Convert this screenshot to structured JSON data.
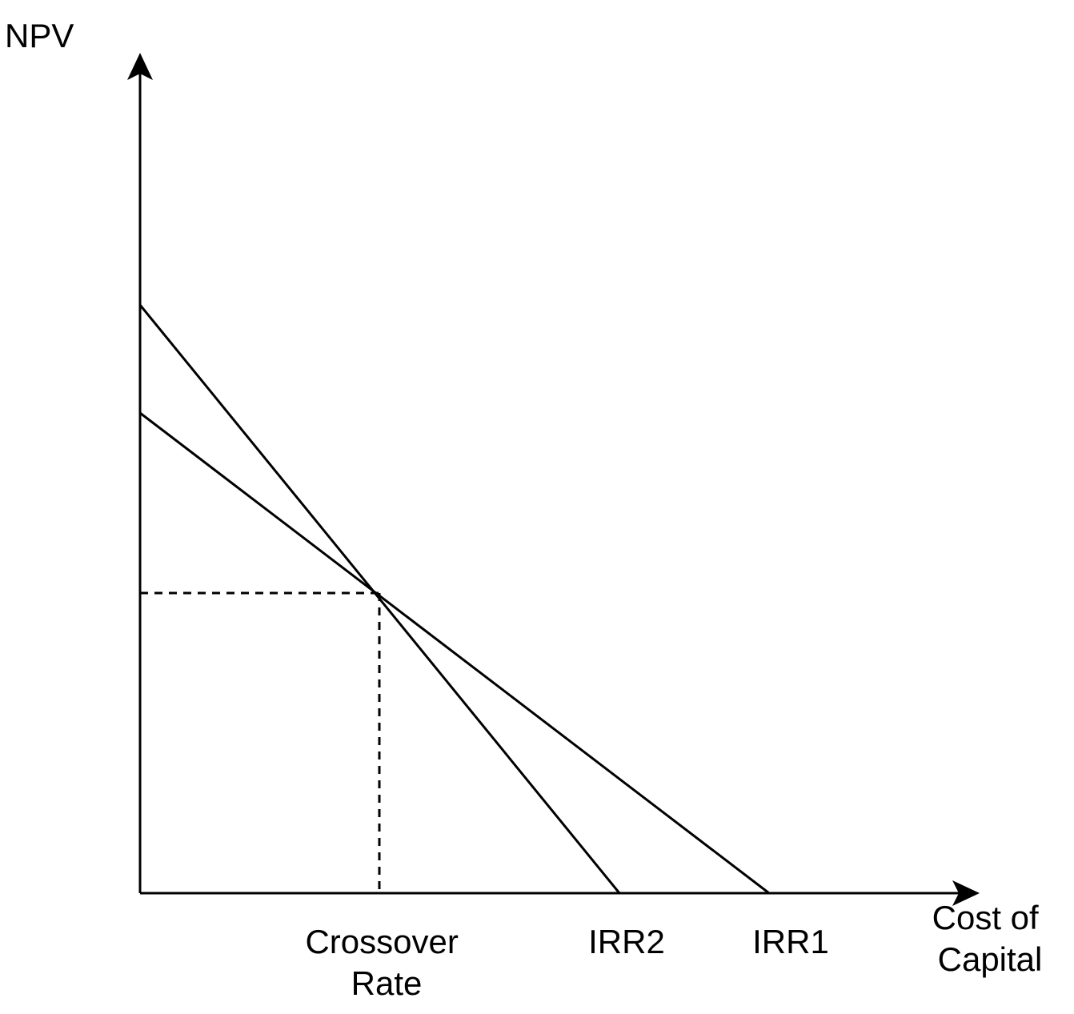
{
  "diagram": {
    "y_axis_label": "NPV",
    "x_axis_label_lines": [
      "Cost of",
      "Capital"
    ],
    "crossover_label_lines": [
      "Crossover",
      "Rate"
    ],
    "irr2_label": "IRR2",
    "irr1_label": "IRR1",
    "line_color": "#000000",
    "background_color": "#ffffff"
  }
}
